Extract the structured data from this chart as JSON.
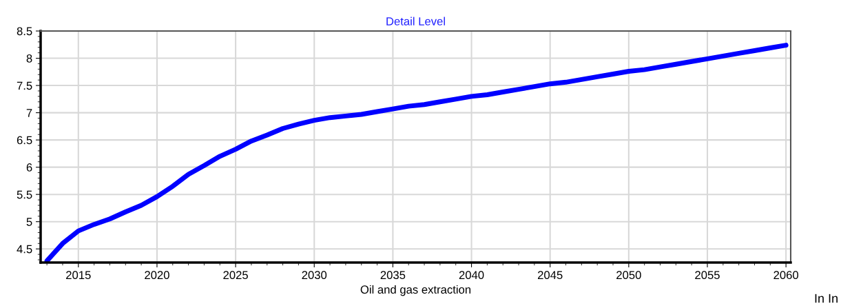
{
  "chart_data": {
    "type": "line",
    "title": "Detail Level",
    "xlabel": "Oil and gas extraction",
    "annotations": [
      "In In"
    ],
    "x": [
      2013,
      2014,
      2015,
      2016,
      2017,
      2018,
      2019,
      2020,
      2021,
      2022,
      2023,
      2024,
      2025,
      2026,
      2027,
      2028,
      2029,
      2030,
      2031,
      2032,
      2033,
      2034,
      2035,
      2036,
      2037,
      2038,
      2039,
      2040,
      2041,
      2042,
      2043,
      2044,
      2045,
      2046,
      2047,
      2048,
      2049,
      2050,
      2051,
      2052,
      2053,
      2054,
      2055,
      2056,
      2057,
      2058,
      2059,
      2060
    ],
    "series": [
      {
        "color": "#0000ff",
        "values": [
          4.28,
          4.6,
          4.83,
          4.95,
          5.05,
          5.18,
          5.3,
          5.46,
          5.65,
          5.87,
          6.03,
          6.2,
          6.33,
          6.48,
          6.59,
          6.71,
          6.79,
          6.86,
          6.91,
          6.94,
          6.97,
          7.02,
          7.07,
          7.12,
          7.15,
          7.2,
          7.25,
          7.3,
          7.33,
          7.38,
          7.43,
          7.48,
          7.53,
          7.56,
          7.61,
          7.66,
          7.71,
          7.76,
          7.79,
          7.84,
          7.89,
          7.94,
          7.99,
          8.04,
          8.09,
          8.14,
          8.19,
          8.24
        ]
      }
    ],
    "xlim": [
      2012.6,
      2060.3
    ],
    "xticks": [
      2015,
      2020,
      2025,
      2030,
      2035,
      2040,
      2045,
      2050,
      2055,
      2060
    ],
    "ylim": [
      4.25,
      8.5
    ],
    "yticks": [
      4.5,
      5,
      5.5,
      6,
      6.5,
      7,
      7.5,
      8,
      8.5
    ],
    "grid": true,
    "legend": false,
    "marker": "none",
    "line_style": "solid"
  }
}
